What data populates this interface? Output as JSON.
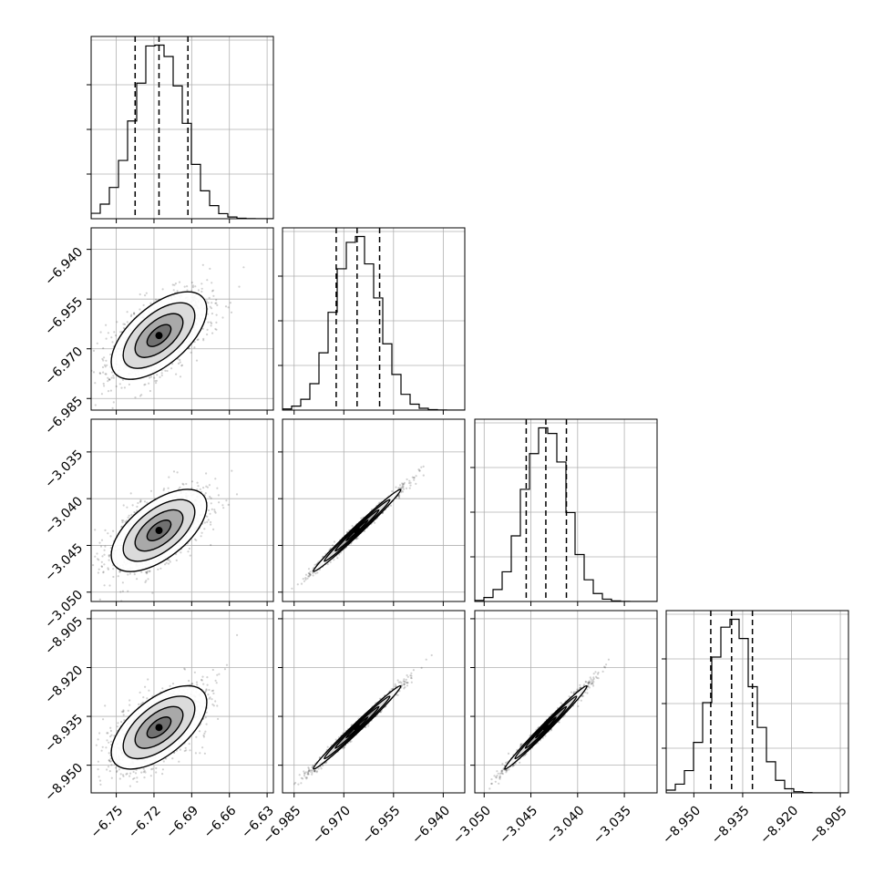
{
  "chart_data": {
    "type": "corner",
    "parameters": [
      {
        "range": [
          -6.77,
          -6.625
        ],
        "ticks": [
          -6.75,
          -6.72,
          -6.69,
          -6.66,
          -6.63
        ],
        "tick_labels": [
          "−6.75",
          "−6.72",
          "−6.69",
          "−6.66",
          "−6.63"
        ],
        "quantiles": [
          -6.735,
          -6.716,
          -6.693
        ],
        "mean": -6.716,
        "sd": 0.019
      },
      {
        "range": [
          -6.9885,
          -6.9335
        ],
        "ticks": [
          -6.985,
          -6.97,
          -6.955,
          -6.94
        ],
        "tick_labels": [
          "−6.985",
          "−6.970",
          "−6.955",
          "−6.940"
        ],
        "quantiles": [
          -6.9723,
          -6.966,
          -6.9592
        ],
        "mean": -6.966,
        "sd": 0.0066
      },
      {
        "range": [
          -3.051,
          -3.0315
        ],
        "ticks": [
          -3.05,
          -3.045,
          -3.04,
          -3.035
        ],
        "tick_labels": [
          "−3.050",
          "−3.045",
          "−3.040",
          "−3.035"
        ],
        "quantiles": [
          -3.0455,
          -3.0434,
          -3.0412
        ],
        "mean": -3.0434,
        "sd": 0.0022
      },
      {
        "range": [
          -8.9585,
          -8.9025
        ],
        "ticks": [
          -8.95,
          -8.935,
          -8.92,
          -8.905
        ],
        "tick_labels": [
          "−8.950",
          "−8.935",
          "−8.920",
          "−8.905"
        ],
        "quantiles": [
          -8.9448,
          -8.9384,
          -8.932
        ],
        "mean": -8.9384,
        "sd": 0.0064
      }
    ],
    "correlation": [
      [
        1.0,
        0.6,
        0.6,
        0.6
      ],
      [
        0.6,
        1.0,
        0.99,
        0.99
      ],
      [
        0.6,
        0.99,
        1.0,
        0.99
      ],
      [
        0.6,
        0.99,
        0.99,
        1.0
      ]
    ],
    "histogram_bins": 20,
    "contour_levels_sigma": [
      0.5,
      1.0,
      1.5,
      2.0
    ],
    "grid": true,
    "quantile_line_style": "dashed",
    "colors": {
      "axes": "#000000",
      "grid": "#b0b0b0",
      "points": "#000000"
    }
  }
}
